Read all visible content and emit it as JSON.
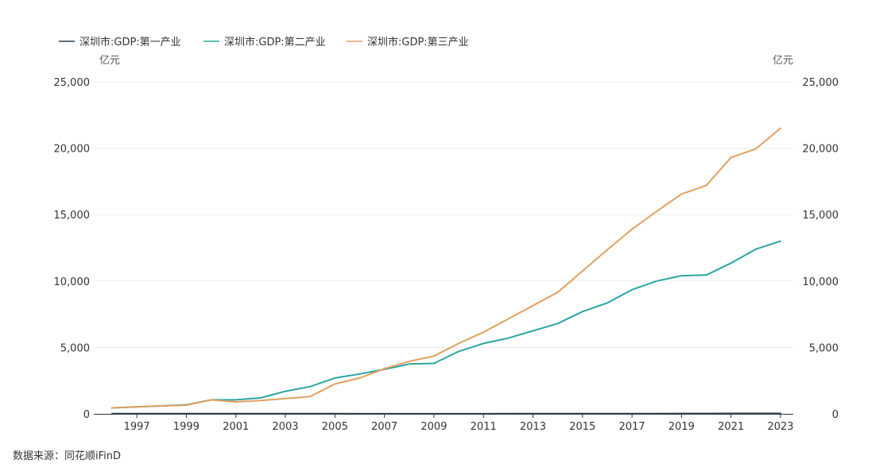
{
  "chart_data": {
    "type": "line",
    "title": "",
    "y_unit_left": "亿元",
    "y_unit_right": "亿元",
    "ylim": [
      0,
      25000
    ],
    "yticks": [
      0,
      5000,
      10000,
      15000,
      20000,
      25000
    ],
    "ytick_labels": [
      "0",
      "5,000",
      "10,000",
      "15,000",
      "20,000",
      "25,000"
    ],
    "xlim": [
      1996,
      2023
    ],
    "xticks": [
      1997,
      1999,
      2001,
      2003,
      2005,
      2007,
      2009,
      2011,
      2013,
      2015,
      2017,
      2019,
      2021,
      2023
    ],
    "xtick_labels": [
      "1997",
      "1999",
      "2001",
      "2003",
      "2005",
      "2007",
      "2009",
      "2011",
      "2013",
      "2015",
      "2017",
      "2019",
      "2021",
      "2023"
    ],
    "grid": true,
    "legend_position": "top-left",
    "x": [
      1996,
      1997,
      1998,
      1999,
      2000,
      2001,
      2002,
      2003,
      2004,
      2005,
      2006,
      2007,
      2008,
      2009,
      2010,
      2011,
      2012,
      2013,
      2014,
      2015,
      2016,
      2017,
      2018,
      2019,
      2020,
      2021,
      2022,
      2023
    ],
    "series": [
      {
        "name": "深圳市:GDP:第一产业",
        "color": "#2c3e50",
        "values": [
          20,
          20,
          20,
          20,
          15,
          15,
          15,
          12,
          12,
          10,
          8,
          7,
          7,
          7,
          7,
          8,
          9,
          10,
          10,
          10,
          11,
          18,
          20,
          24,
          26,
          27,
          29,
          30
        ]
      },
      {
        "name": "深圳市:GDP:第二产业",
        "color": "#2aa6a0",
        "values": [
          450,
          520,
          600,
          680,
          1050,
          1050,
          1200,
          1700,
          2050,
          2700,
          3000,
          3350,
          3750,
          3800,
          4700,
          5300,
          5700,
          6250,
          6800,
          7700,
          8350,
          9350,
          10000,
          10400,
          10450,
          11350,
          12400,
          13000
        ]
      },
      {
        "name": "深圳市:GDP:第三产业",
        "color": "#e0a060",
        "values": [
          450,
          530,
          600,
          650,
          1050,
          900,
          1000,
          1150,
          1300,
          2250,
          2700,
          3400,
          3950,
          4350,
          5300,
          6150,
          7150,
          8150,
          9150,
          10750,
          12350,
          13900,
          15250,
          16550,
          17200,
          19300,
          19950,
          21500
        ]
      }
    ]
  },
  "source": "数据来源：同花顺iFinD"
}
